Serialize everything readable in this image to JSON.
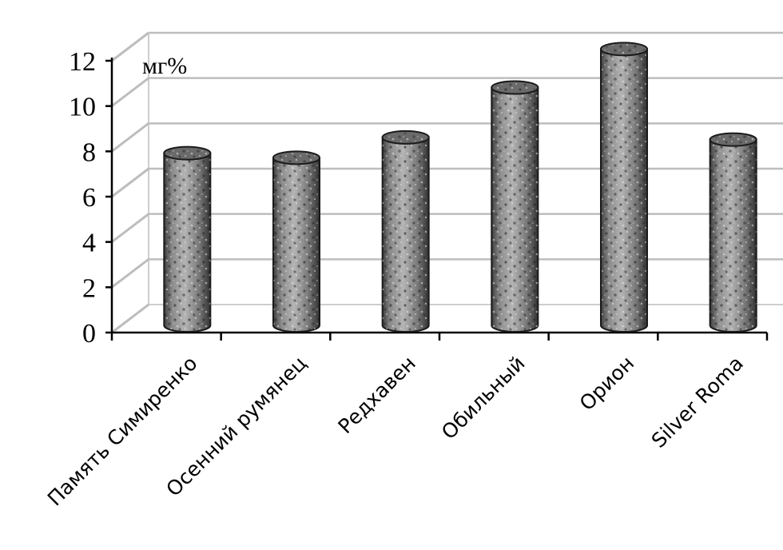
{
  "chart_data": {
    "type": "bar",
    "style": "3d-cylinder",
    "categories": [
      "Память Симиренко",
      "Осенний румянец",
      "Редхавен",
      "Обильный",
      "Орион",
      "Silver Roma"
    ],
    "values": [
      7.6,
      7.4,
      8.3,
      10.5,
      12.2,
      8.2
    ],
    "title": "",
    "xlabel": "",
    "ylabel": "",
    "unit_label": "мг%",
    "ylim": [
      0,
      12
    ],
    "yticks": [
      "0",
      "2",
      "4",
      "6",
      "8",
      "10",
      "12"
    ],
    "grid": true,
    "legend": "none",
    "colors": {
      "bar": "#9a9a9a",
      "bar_dark": "#3a3a3a",
      "grid": "#bdbdbd",
      "axis": "#000000"
    }
  }
}
